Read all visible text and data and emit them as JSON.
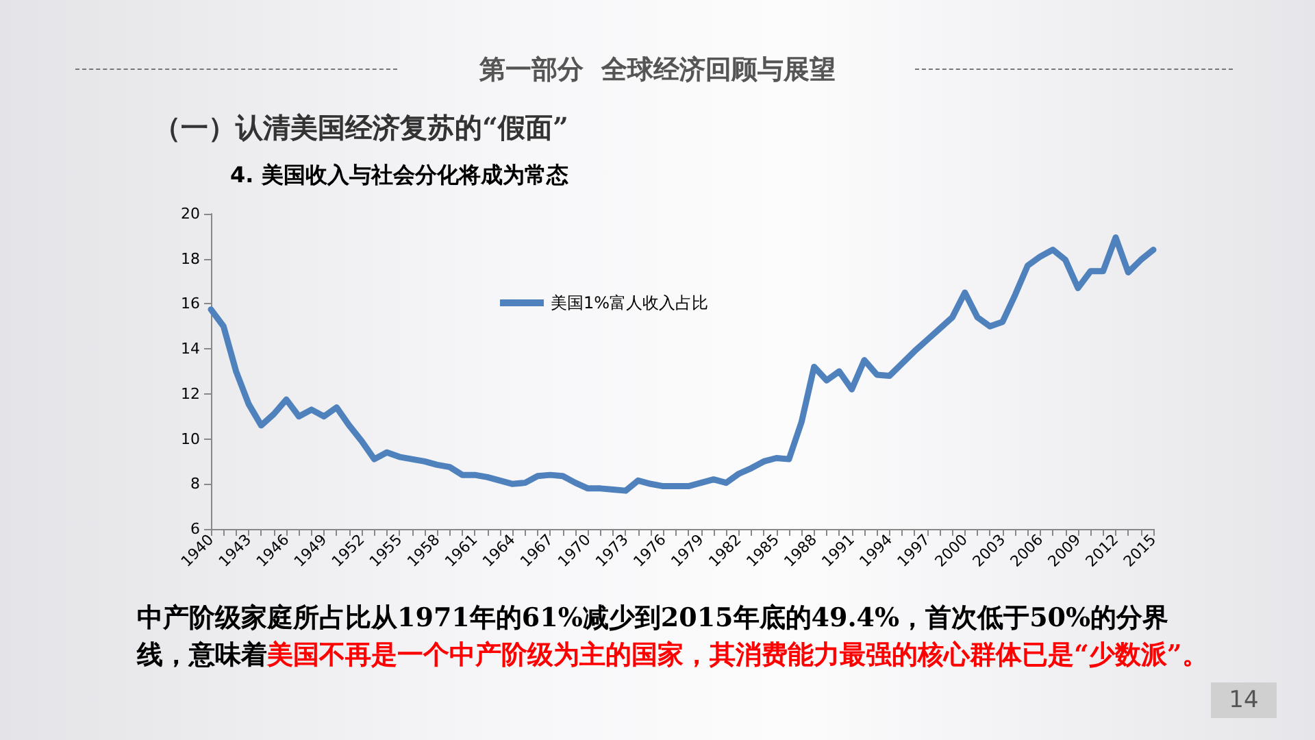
{
  "chart_data": {
    "type": "line",
    "title": "4. 美国收入与社会分化将成为常态",
    "annotations": [
      "第一部分  全球经济回顾与展望",
      "（一）认清美国经济复苏的“假面”",
      "中产阶级家庭所占比从1971年的61%减少到2015年底的49.4%，首次低于50%的分界线，意味着",
      "美国不再是一个中产阶级为主的国家，其消费能力最强的核心群体已是“少数派”。",
      "14"
    ],
    "categories": [
      "1940",
      null,
      null,
      "1943",
      null,
      null,
      "1946",
      null,
      null,
      "1949",
      null,
      null,
      "1952",
      null,
      null,
      "1955",
      null,
      null,
      "1958",
      null,
      null,
      "1961",
      null,
      null,
      "1964",
      null,
      null,
      "1967",
      null,
      null,
      "1970",
      null,
      null,
      "1973",
      null,
      null,
      "1976",
      null,
      null,
      "1979",
      null,
      null,
      "1982",
      null,
      null,
      "1985",
      null,
      null,
      "1988",
      null,
      null,
      "1991",
      null,
      null,
      "1994",
      null,
      null,
      "1997",
      null,
      null,
      "2000",
      null,
      null,
      "2003",
      null,
      null,
      "2006",
      null,
      null,
      "2009",
      null,
      null,
      "2012",
      null,
      null,
      "2015"
    ],
    "series": [
      {
        "name": "美国1%富人收入占比",
        "color": "#4f81bd",
        "values": [
          15.75,
          15.0,
          13.0,
          11.55,
          10.6,
          11.1,
          11.75,
          11.0,
          11.3,
          11.0,
          11.4,
          10.6,
          9.9,
          9.1,
          9.4,
          9.2,
          9.1,
          9.0,
          8.85,
          8.75,
          8.4,
          8.4,
          8.3,
          8.15,
          8.0,
          8.05,
          8.35,
          8.4,
          8.35,
          8.05,
          7.8,
          7.8,
          7.75,
          7.7,
          8.15,
          8.0,
          7.9,
          7.9,
          7.9,
          8.05,
          8.2,
          8.05,
          8.45,
          8.7,
          9.0,
          9.15,
          9.1,
          10.75,
          13.2,
          12.6,
          13.0,
          12.2,
          13.5,
          12.85,
          12.8,
          13.35,
          13.9,
          14.4,
          14.9,
          15.4,
          16.5,
          15.4,
          15.0,
          15.2,
          16.4,
          17.7,
          18.1,
          18.4,
          17.95,
          16.7,
          17.45,
          17.45,
          18.95,
          17.4,
          17.95,
          18.4
        ]
      }
    ],
    "ylim": [
      6,
      20
    ],
    "yticks": [
      6,
      8,
      10,
      12,
      14,
      16,
      18,
      20
    ],
    "grid": false,
    "legend": "top",
    "marker": "none",
    "line_style": "solid"
  }
}
